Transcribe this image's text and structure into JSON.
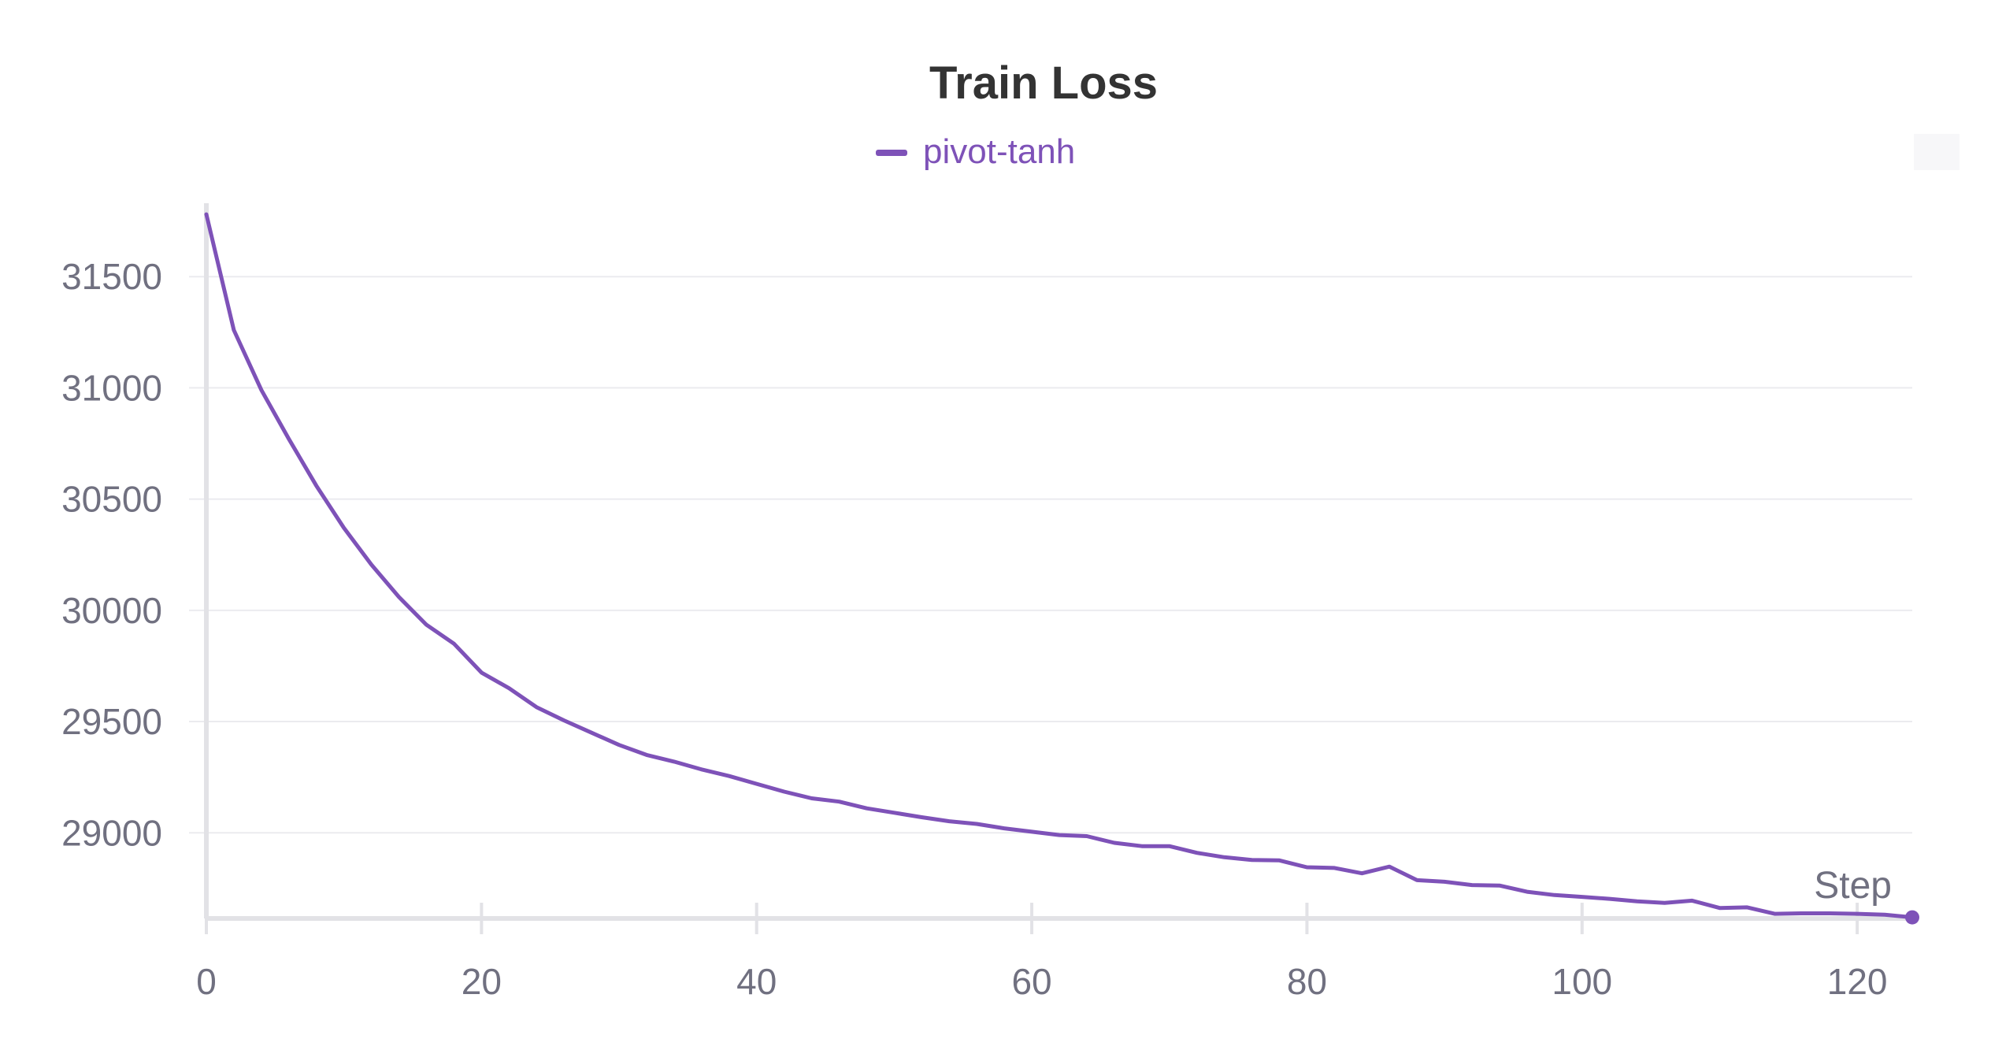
{
  "chart_data": {
    "type": "line",
    "title": "Train Loss",
    "xlabel": "Step",
    "ylabel": "",
    "xlim": [
      0,
      124
    ],
    "ylim": [
      28615,
      31830
    ],
    "x_ticks": [
      0,
      20,
      40,
      60,
      80,
      100,
      120
    ],
    "y_ticks": [
      29000,
      29500,
      30000,
      30500,
      31000,
      31500
    ],
    "grid": true,
    "legend_position": "top-center",
    "colors": {
      "series": "#7e52b8",
      "axis": "#e2e2e6",
      "grid": "#ebebef",
      "tick_label": "#707080",
      "title": "#333333"
    },
    "series": [
      {
        "name": "pivot-tanh",
        "x": [
          0,
          2,
          4,
          6,
          8,
          10,
          12,
          14,
          16,
          18,
          20,
          22,
          24,
          26,
          28,
          30,
          32,
          34,
          36,
          38,
          40,
          42,
          44,
          46,
          48,
          50,
          52,
          54,
          56,
          58,
          60,
          62,
          64,
          66,
          68,
          70,
          72,
          74,
          76,
          78,
          80,
          82,
          84,
          86,
          88,
          90,
          92,
          94,
          96,
          98,
          100,
          102,
          104,
          106,
          108,
          110,
          112,
          114,
          116,
          118,
          120,
          122,
          124
        ],
        "y": [
          31780,
          31260,
          30990,
          30770,
          30560,
          30370,
          30205,
          30060,
          29935,
          29850,
          29720,
          29650,
          29565,
          29505,
          29450,
          29395,
          29350,
          29320,
          29285,
          29255,
          29220,
          29185,
          29155,
          29140,
          29110,
          29090,
          29070,
          29052,
          29040,
          29020,
          29005,
          28990,
          28985,
          28955,
          28940,
          28940,
          28910,
          28890,
          28878,
          28876,
          28845,
          28842,
          28818,
          28848,
          28787,
          28780,
          28765,
          28763,
          28735,
          28720,
          28712,
          28703,
          28692,
          28685,
          28695,
          28662,
          28665,
          28636,
          28638,
          28638,
          28636,
          28632,
          28620
        ]
      }
    ]
  }
}
